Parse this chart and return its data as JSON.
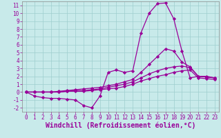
{
  "xlabel": "Windchill (Refroidissement éolien,°C)",
  "ylabel": "",
  "background_color": "#c8eaea",
  "grid_color": "#9ecece",
  "line_color": "#990099",
  "xlim": [
    -0.5,
    23.5
  ],
  "ylim": [
    -2.5,
    11.5
  ],
  "xticks": [
    0,
    1,
    2,
    3,
    4,
    5,
    6,
    7,
    8,
    9,
    10,
    11,
    12,
    13,
    14,
    15,
    16,
    17,
    18,
    19,
    20,
    21,
    22,
    23
  ],
  "yticks": [
    -2,
    -1,
    0,
    1,
    2,
    3,
    4,
    5,
    6,
    7,
    8,
    9,
    10,
    11
  ],
  "line1_x": [
    0,
    1,
    2,
    3,
    4,
    5,
    6,
    7,
    8,
    9,
    10,
    11,
    12,
    13,
    14,
    15,
    16,
    17,
    18,
    19,
    20,
    21,
    22,
    23
  ],
  "line1_y": [
    0,
    -0.5,
    -0.7,
    -0.8,
    -0.8,
    -0.9,
    -1.0,
    -1.7,
    -2.0,
    -0.5,
    2.5,
    2.8,
    2.5,
    2.7,
    7.5,
    10.0,
    11.2,
    11.3,
    9.3,
    5.2,
    1.8,
    2.0,
    2.0,
    1.8
  ],
  "line2_x": [
    0,
    1,
    2,
    3,
    4,
    5,
    6,
    7,
    8,
    9,
    10,
    11,
    12,
    13,
    14,
    15,
    16,
    17,
    18,
    19,
    20,
    21,
    22,
    23
  ],
  "line2_y": [
    0,
    0,
    0,
    0,
    0.1,
    0.2,
    0.3,
    0.4,
    0.5,
    0.6,
    0.8,
    1.0,
    1.3,
    1.6,
    2.5,
    3.5,
    4.5,
    5.5,
    5.2,
    3.8,
    3.2,
    2.0,
    1.9,
    1.8
  ],
  "line3_x": [
    0,
    1,
    2,
    3,
    4,
    5,
    6,
    7,
    8,
    9,
    10,
    11,
    12,
    13,
    14,
    15,
    16,
    17,
    18,
    19,
    20,
    21,
    22,
    23
  ],
  "line3_y": [
    0,
    0,
    0,
    0,
    0,
    0.1,
    0.2,
    0.2,
    0.3,
    0.4,
    0.6,
    0.8,
    1.0,
    1.3,
    1.8,
    2.3,
    2.7,
    3.0,
    3.2,
    3.3,
    3.1,
    2.0,
    1.9,
    1.8
  ],
  "line4_x": [
    0,
    1,
    2,
    3,
    4,
    5,
    6,
    7,
    8,
    9,
    10,
    11,
    12,
    13,
    14,
    15,
    16,
    17,
    18,
    19,
    20,
    21,
    22,
    23
  ],
  "line4_y": [
    0,
    0,
    0,
    0,
    0,
    0.1,
    0.1,
    0.1,
    0.2,
    0.3,
    0.4,
    0.5,
    0.7,
    1.0,
    1.4,
    1.7,
    2.0,
    2.2,
    2.5,
    2.7,
    2.8,
    1.8,
    1.7,
    1.6
  ],
  "marker": "D",
  "marker_size": 2.2,
  "linewidth": 0.9,
  "tick_fontsize": 5.5,
  "xlabel_fontsize": 7.0
}
